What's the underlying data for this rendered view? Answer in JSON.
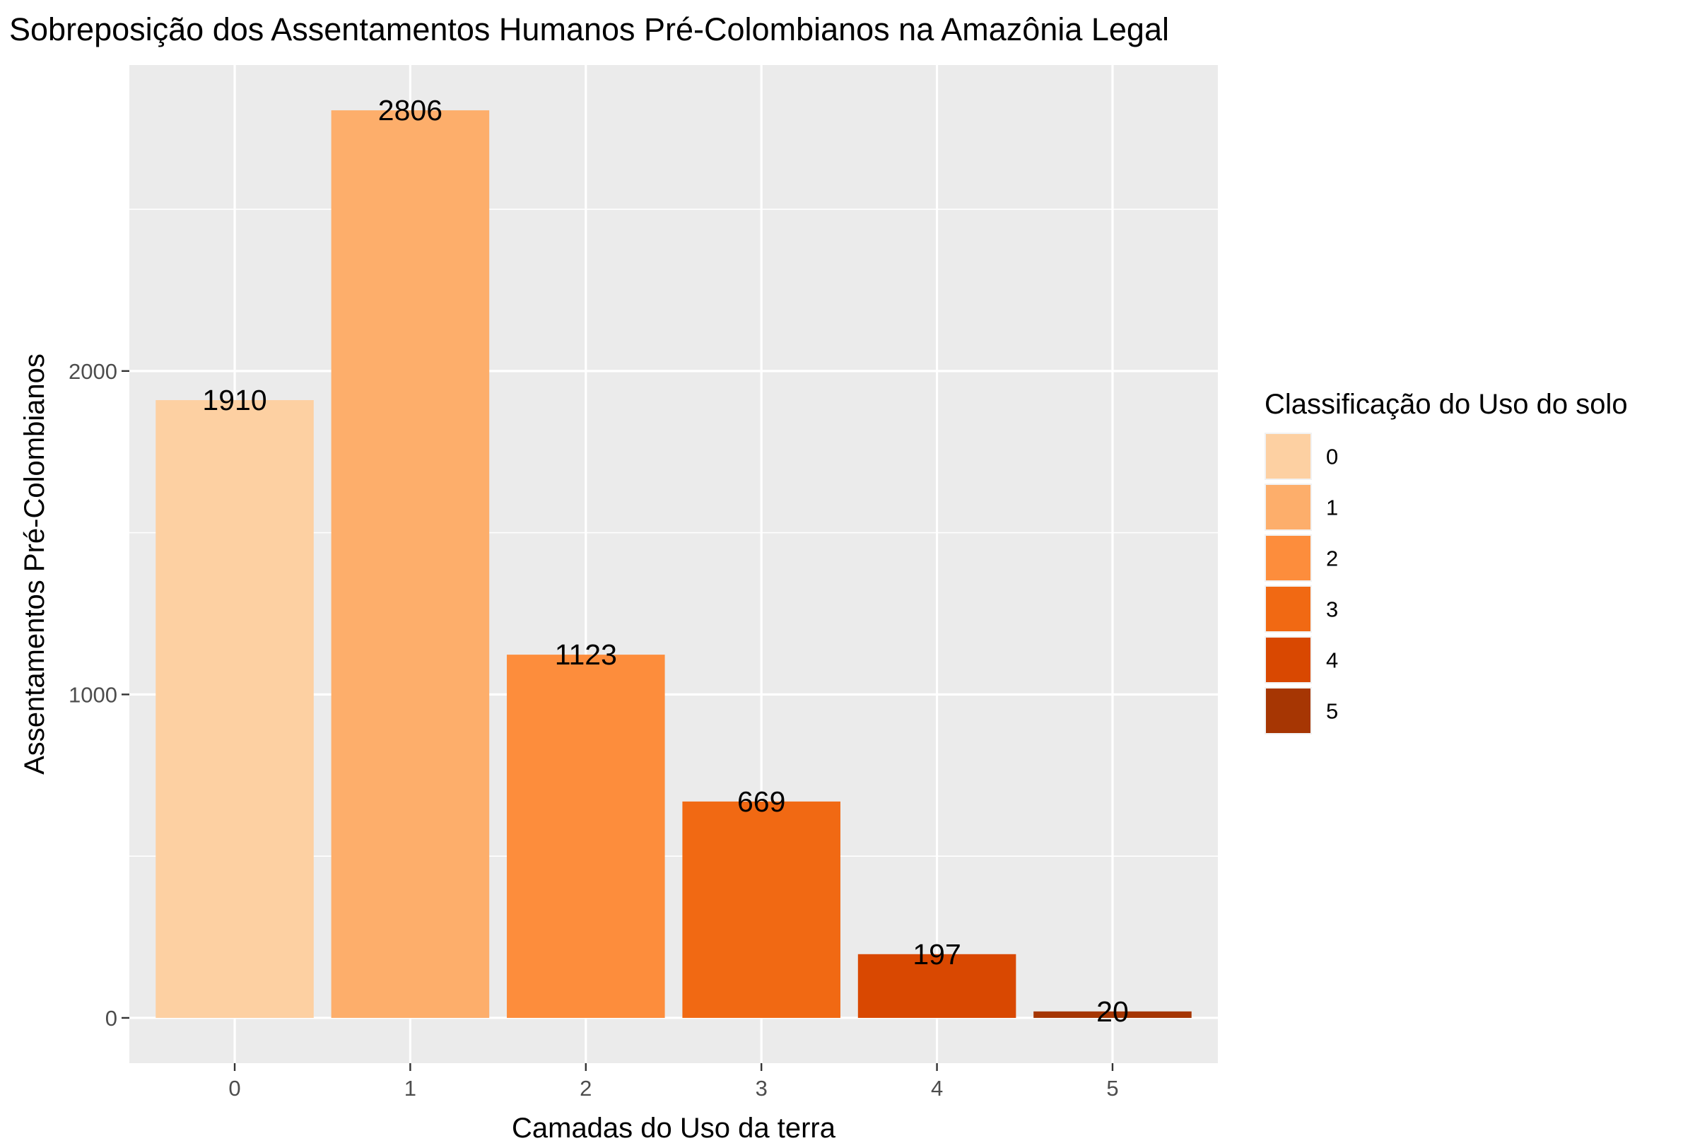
{
  "chart_data": {
    "type": "bar",
    "title": "Sobreposição dos Assentamentos Humanos Pré-Colombianos na Amazônia Legal",
    "xlabel": "Camadas do Uso da terra",
    "ylabel": "Assentamentos Pré-Colombianos",
    "categories": [
      "0",
      "1",
      "2",
      "3",
      "4",
      "5"
    ],
    "values": [
      1910,
      2806,
      1123,
      669,
      197,
      20
    ],
    "data_labels": [
      "1910",
      "2806",
      "1123",
      "669",
      "197",
      "20"
    ],
    "ylim": [
      -140,
      2946
    ],
    "y_ticks": [
      0,
      1000,
      2000
    ],
    "y_tick_labels": [
      "0",
      "1000",
      "2000"
    ],
    "y_minor_ticks": [
      500,
      1500,
      2500
    ],
    "grid": true,
    "panel_background": "#EBEBEB",
    "grid_color": "#FFFFFF",
    "colors": [
      "#FDD0A2",
      "#FDAE6B",
      "#FD8D3C",
      "#F16913",
      "#D94801",
      "#A63603"
    ],
    "legend": {
      "title": "Classificação do Uso do solo",
      "position": "right",
      "labels": [
        "0",
        "1",
        "2",
        "3",
        "4",
        "5"
      ]
    }
  }
}
